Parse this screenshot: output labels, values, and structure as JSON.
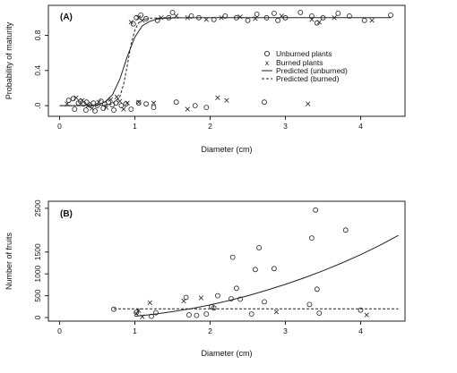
{
  "panels": [
    {
      "label": "(A)",
      "xlabel": "Diameter (cm)",
      "ylabel": "Probability of maturity",
      "xlim": [
        0,
        4.5
      ],
      "ylim": [
        -0.08,
        1.1
      ],
      "xticks": [
        "0",
        "1",
        "2",
        "3",
        "4"
      ],
      "yticks": [
        ".0",
        "0.4",
        "0.8"
      ],
      "legend": {
        "placement": "center-right",
        "unburned": "Unburned plants",
        "burned": "Burned plants",
        "pred_unburned": "Predicted (unburned)",
        "pred_burned": "Predicted (burned)"
      }
    },
    {
      "label": "(B)",
      "xlabel": "Diameter (cm)",
      "ylabel": "Number of fruits",
      "xlim": [
        0,
        4.5
      ],
      "ylim": [
        -20,
        2600
      ],
      "xticks": [
        "0",
        "1",
        "2",
        "3",
        "4"
      ],
      "yticks": [
        "0",
        "500",
        "1000",
        "1500",
        "2500"
      ]
    }
  ],
  "chart_data": [
    {
      "type": "scatter",
      "panel": "(A)",
      "xlabel": "Diameter (cm)",
      "ylabel": "Probability of maturity",
      "xlim": [
        0,
        4.5
      ],
      "ylim": [
        -0.08,
        1.1
      ],
      "grid": false,
      "legend_placement": "center-right",
      "series": [
        {
          "name": "Unburned plants",
          "marker": "circle",
          "points": [
            [
              0.12,
              0.06
            ],
            [
              0.18,
              0.08
            ],
            [
              0.25,
              0.03
            ],
            [
              0.28,
              0.05
            ],
            [
              0.32,
              0.02
            ],
            [
              0.36,
              0.04
            ],
            [
              0.4,
              0.01
            ],
            [
              0.45,
              0.03
            ],
            [
              0.5,
              0.0
            ],
            [
              0.55,
              0.05
            ],
            [
              0.6,
              0.02
            ],
            [
              0.65,
              0.04
            ],
            [
              0.7,
              0.01
            ],
            [
              0.75,
              0.03
            ],
            [
              0.82,
              0.0
            ],
            [
              0.88,
              0.02
            ],
            [
              0.2,
              -0.04
            ],
            [
              0.35,
              -0.05
            ],
            [
              0.47,
              -0.06
            ],
            [
              0.58,
              -0.03
            ],
            [
              0.72,
              -0.05
            ],
            [
              0.95,
              -0.04
            ],
            [
              1.05,
              0.03
            ],
            [
              1.15,
              0.02
            ],
            [
              1.25,
              -0.02
            ],
            [
              1.55,
              0.04
            ],
            [
              1.8,
              0.0
            ],
            [
              1.95,
              -0.02
            ],
            [
              2.72,
              0.04
            ],
            [
              0.98,
              0.93
            ],
            [
              1.02,
              1.0
            ],
            [
              1.08,
              1.03
            ],
            [
              1.15,
              0.99
            ],
            [
              1.3,
              0.97
            ],
            [
              1.45,
              1.0
            ],
            [
              1.5,
              1.06
            ],
            [
              1.75,
              1.02
            ],
            [
              1.85,
              1.0
            ],
            [
              2.05,
              0.98
            ],
            [
              2.2,
              1.02
            ],
            [
              2.35,
              1.0
            ],
            [
              2.5,
              0.97
            ],
            [
              2.62,
              1.04
            ],
            [
              2.75,
              1.0
            ],
            [
              2.85,
              1.05
            ],
            [
              3.0,
              1.0
            ],
            [
              3.2,
              1.06
            ],
            [
              3.35,
              1.02
            ],
            [
              3.5,
              1.0
            ],
            [
              3.7,
              1.05
            ],
            [
              3.85,
              1.02
            ],
            [
              4.05,
              0.97
            ],
            [
              4.4,
              1.03
            ],
            [
              3.42,
              0.94
            ],
            [
              2.9,
              0.97
            ]
          ]
        },
        {
          "name": "Burned plants",
          "marker": "x",
          "points": [
            [
              0.1,
              0.02
            ],
            [
              0.22,
              0.09
            ],
            [
              0.3,
              0.06
            ],
            [
              0.38,
              0.0
            ],
            [
              0.43,
              -0.03
            ],
            [
              0.52,
              0.04
            ],
            [
              0.62,
              -0.02
            ],
            [
              0.68,
              0.07
            ],
            [
              0.76,
              0.1
            ],
            [
              0.8,
              0.05
            ],
            [
              0.85,
              -0.04
            ],
            [
              0.9,
              0.03
            ],
            [
              1.05,
              0.04
            ],
            [
              1.25,
              0.03
            ],
            [
              1.7,
              -0.04
            ],
            [
              2.1,
              0.09
            ],
            [
              2.22,
              0.06
            ],
            [
              3.3,
              0.02
            ],
            [
              0.95,
              0.95
            ],
            [
              1.05,
              1.0
            ],
            [
              1.1,
              0.97
            ],
            [
              1.35,
              1.0
            ],
            [
              1.55,
              1.02
            ],
            [
              1.7,
              1.0
            ],
            [
              1.95,
              0.98
            ],
            [
              2.15,
              1.0
            ],
            [
              2.4,
              1.01
            ],
            [
              2.6,
              0.99
            ],
            [
              2.95,
              1.02
            ],
            [
              3.35,
              0.98
            ],
            [
              3.45,
              0.95
            ],
            [
              3.65,
              1.0
            ],
            [
              4.15,
              0.97
            ]
          ]
        }
      ],
      "curves": [
        {
          "name": "Predicted (unburned)",
          "style": "solid",
          "x": [
            0.0,
            0.25,
            0.5,
            0.6,
            0.7,
            0.8,
            0.9,
            1.0,
            1.1,
            1.2,
            1.3,
            1.4,
            1.6,
            2.0,
            3.0,
            4.4
          ],
          "y": [
            0.0,
            0.0,
            0.01,
            0.04,
            0.12,
            0.3,
            0.56,
            0.78,
            0.91,
            0.96,
            0.985,
            0.994,
            0.999,
            1.0,
            1.0,
            1.0
          ]
        },
        {
          "name": "Predicted (burned)",
          "style": "dashed",
          "x": [
            0.0,
            0.5,
            0.7,
            0.8,
            0.85,
            0.9,
            0.95,
            1.0,
            1.05,
            1.1,
            1.2,
            1.4,
            1.6
          ],
          "y": [
            0.0,
            0.0,
            0.02,
            0.1,
            0.24,
            0.46,
            0.7,
            0.86,
            0.94,
            0.975,
            0.995,
            1.0,
            1.0
          ]
        }
      ]
    },
    {
      "type": "scatter",
      "panel": "(B)",
      "xlabel": "Diameter (cm)",
      "ylabel": "Number of fruits",
      "xlim": [
        0,
        4.5
      ],
      "ylim": [
        -20,
        2600
      ],
      "grid": false,
      "series": [
        {
          "name": "Unburned plants",
          "marker": "circle",
          "points": [
            [
              0.72,
              190
            ],
            [
              1.02,
              120
            ],
            [
              1.22,
              30
            ],
            [
              1.28,
              110
            ],
            [
              1.68,
              460
            ],
            [
              1.72,
              60
            ],
            [
              1.82,
              50
            ],
            [
              1.95,
              80
            ],
            [
              2.02,
              250
            ],
            [
              2.05,
              220
            ],
            [
              2.1,
              500
            ],
            [
              2.28,
              430
            ],
            [
              2.3,
              1380
            ],
            [
              2.35,
              670
            ],
            [
              2.4,
              420
            ],
            [
              2.55,
              80
            ],
            [
              2.6,
              1100
            ],
            [
              2.65,
              1600
            ],
            [
              2.72,
              360
            ],
            [
              2.85,
              1120
            ],
            [
              3.32,
              300
            ],
            [
              3.35,
              1820
            ],
            [
              3.4,
              2460
            ],
            [
              3.42,
              650
            ],
            [
              3.45,
              100
            ],
            [
              3.8,
              2000
            ],
            [
              4.0,
              170
            ]
          ]
        },
        {
          "name": "Burned plants",
          "marker": "x",
          "points": [
            [
              1.02,
              90
            ],
            [
              1.05,
              160
            ],
            [
              1.1,
              20
            ],
            [
              1.2,
              340
            ],
            [
              1.65,
              380
            ],
            [
              1.88,
              450
            ],
            [
              2.88,
              130
            ],
            [
              4.08,
              60
            ]
          ]
        }
      ],
      "curves": [
        {
          "name": "Predicted (unburned)",
          "style": "solid",
          "x": [
            1.0,
            1.25,
            1.5,
            1.75,
            2.0,
            2.25,
            2.5,
            2.75,
            3.0,
            3.25,
            3.5,
            3.75,
            4.0,
            4.25,
            4.5
          ],
          "y": [
            30,
            75,
            135,
            205,
            290,
            390,
            500,
            625,
            760,
            910,
            1070,
            1250,
            1440,
            1650,
            1880
          ]
        },
        {
          "name": "Predicted (burned)",
          "style": "dashed",
          "x": [
            0.72,
            4.5
          ],
          "y": [
            200,
            200
          ]
        }
      ]
    }
  ]
}
